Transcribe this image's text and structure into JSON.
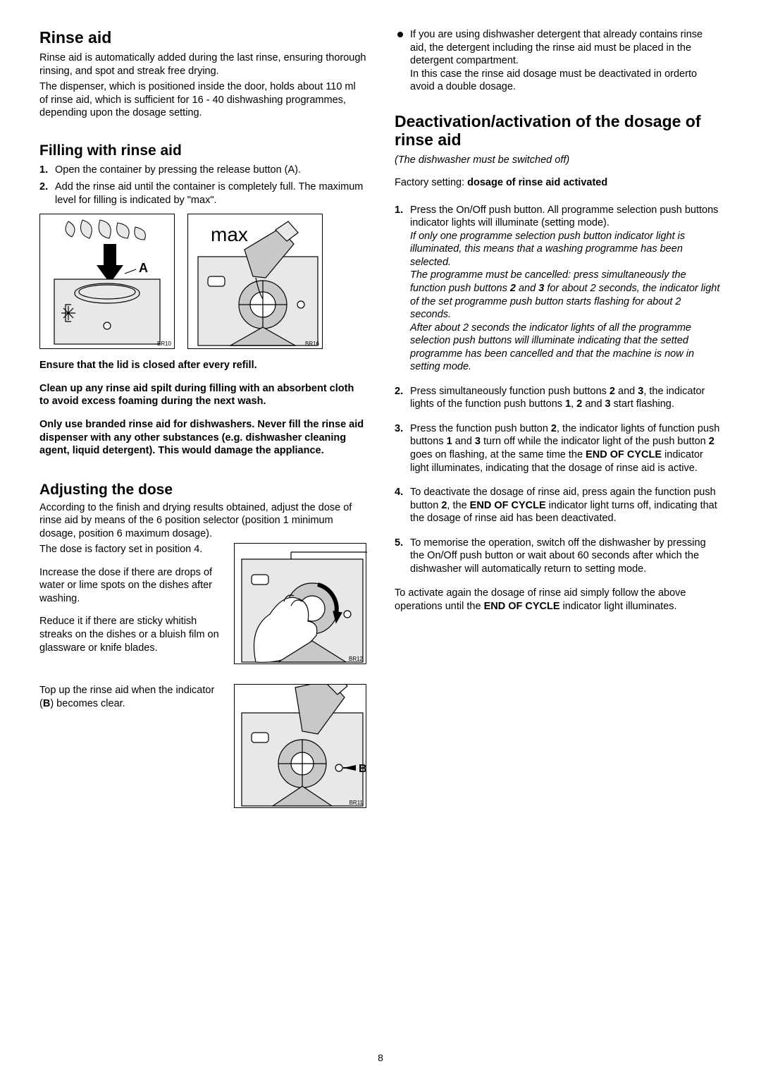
{
  "page_number": "8",
  "figure_style": {
    "border_color": "#000000",
    "border_width": 1.5,
    "label_fontsize": 8,
    "fill_gray": "#c8c8c8",
    "fill_light": "#e8e8e8"
  },
  "fonts": {
    "h_main": 23,
    "h_sub": 21,
    "body": 14.5
  },
  "left": {
    "h_rinse_aid": "Rinse aid",
    "rinse_p1": "Rinse aid is automatically added during the last rinse, ensuring thorough rinsing, and spot and streak free drying.",
    "rinse_p2": "The dispenser, which is positioned inside the door, holds about 110 ml of rinse aid, which is sufficient for 16 - 40 dishwashing programmes, depending upon the dosage setting.",
    "h_filling": "Filling with rinse aid",
    "fill_1": "Open the container by pressing the release button (A).",
    "fill_2": "Add the rinse aid until the container is completely full. The maximum level for filling is indicated by \"max\".",
    "fig_br10": "BR10",
    "fig_br16": "BR16",
    "fig_max": "max",
    "fig_A": "A",
    "warn_1": "Ensure that the lid is closed after every refill.",
    "warn_2": "Clean up any rinse aid spilt during filling with an absorbent cloth to avoid excess foaming during the next wash.",
    "warn_3": "Only use branded rinse aid for dishwashers. Never fill the rinse aid dispenser with any other substances (e.g. dishwasher cleaning agent, liquid detergent). This would damage the appliance.",
    "h_adjust": "Adjusting the dose",
    "adj_p1": "According to the finish and drying results obtained, adjust the dose of rinse aid by means of the 6 position selector (position 1 minimum dosage, position 6 maximum dosage).",
    "adj_p2": "The dose is factory set in position 4.",
    "adj_p3": "Increase the dose if there are drops of water or lime spots on the dishes after washing.",
    "adj_p4": "Reduce it if there are sticky whitish streaks on the dishes or a bluish film on glassware or knife blades.",
    "fig_br12": "BR12",
    "topup_html": "Top up the rinse aid when the indicator (<b>B</b>) becomes clear.",
    "fig_br11": "BR11",
    "fig_B": "B"
  },
  "right": {
    "bullet_html": "If you are using dishwasher detergent that already contains rinse aid, the detergent including the rinse aid must be placed in the detergent compartment.<br>In this case the rinse aid dosage must be deactivated in orderto avoid a double dosage.",
    "h_deact": "Deactivation/activation of the dosage of rinse aid",
    "deact_italic": "(The dishwasher must be switched off)",
    "factory_html": "Factory setting: <b>dosage of rinse aid activated</b>",
    "step1_main": "Press the On/Off push button. All programme selection push buttons indicator lights will illuminate (setting mode).",
    "step1_it1_html": "If only one programme selection push button indicator light is illuminated, this means that a washing programme has been selected.",
    "step1_it2_html": "The programme must be cancelled: press simultaneously the function push buttons <b>2</b> and <b>3</b> for about 2 seconds, the indicator light of the set programme push button starts flashing for about 2 seconds.",
    "step1_it3_html": "After about 2 seconds the indicator lights of all the programme selection push buttons will illuminate indicating that the setted programme has been cancelled and that the machine is now in setting mode.",
    "step2_html": "Press simultaneously function push buttons <b>2</b> and <b>3</b>, the indicator lights of the function push buttons <b>1</b>, <b>2</b> and <b>3</b> start flashing.",
    "step3_html": "Press the function push button <b>2</b>, the indicator lights of function push buttons <b>1</b> and <b>3</b> turn off while the indicator light of the push button <b>2</b> goes on flashing, at the same time the <b>END OF CYCLE</b> indicator light illuminates, indicating that the dosage of rinse aid is active.",
    "step4_html": "To deactivate the dosage of rinse aid, press again the function push button <b>2</b>, the <b>END OF CYCLE</b> indicator light turns off, indicating that the dosage of rinse aid has been deactivated.",
    "step5_html": "To memorise the operation, switch off the dishwasher by pressing the On/Off push button or wait about 60 seconds after which the dishwasher will automatically return to setting mode.",
    "closing_html": "To activate again the dosage of rinse aid simply follow the above operations until the <b>END OF CYCLE</b> indicator light illuminates."
  }
}
